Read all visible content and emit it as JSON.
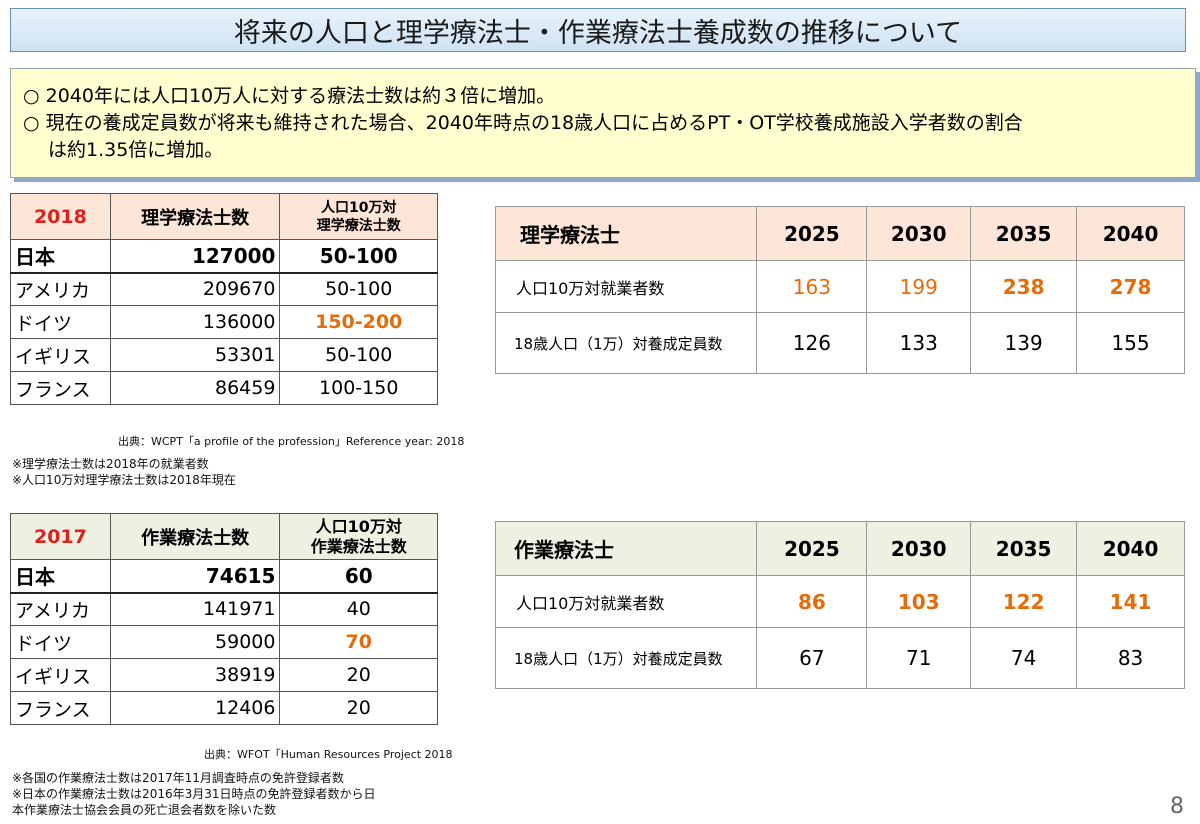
{
  "title": "将来の人口と理学療法士・作業療法士養成数の推移について",
  "summary": {
    "line1": "○ 2040年には人口10万人に対する療法士数は約３倍に増加。",
    "line2": "○ 現在の養成定員数が将来も維持された場合、2040年時点の18歳人口に占めるPT・OT学校養成施設入学者数の割合",
    "line3": "は約1.35倍に増加。"
  },
  "pt_country": {
    "year": "2018",
    "col_count": "理学療法士数",
    "col_ratio_1": "人口10万対",
    "col_ratio_2": "理学療法士数",
    "rows": [
      {
        "country": "日本",
        "count": "127000",
        "ratio": "50-100"
      },
      {
        "country": "アメリカ",
        "count": "209670",
        "ratio": "50-100"
      },
      {
        "country": "ドイツ",
        "count": "136000",
        "ratio": "150-200"
      },
      {
        "country": "イギリス",
        "count": "53301",
        "ratio": "50-100"
      },
      {
        "country": "フランス",
        "count": "86459",
        "ratio": "100-150"
      }
    ],
    "source": "出典：WCPT「a profile of the profession」Reference year: 2018",
    "notes": [
      "※理学療法士数は2018年の就業者数",
      "※人口10万対理学療法士数は2018年現在"
    ]
  },
  "ot_country": {
    "year": "2017",
    "col_count": "作業療法士数",
    "col_ratio_1": "人口10万対",
    "col_ratio_2": "作業療法士数",
    "rows": [
      {
        "country": "日本",
        "count": "74615",
        "ratio": "60"
      },
      {
        "country": "アメリカ",
        "count": "141971",
        "ratio": "40"
      },
      {
        "country": "ドイツ",
        "count": "59000",
        "ratio": "70"
      },
      {
        "country": "イギリス",
        "count": "38919",
        "ratio": "20"
      },
      {
        "country": "フランス",
        "count": "12406",
        "ratio": "20"
      }
    ],
    "source": "出典：WFOT「Human Resources Project 2018",
    "notes": [
      "※各国の作業療法士数は2017年11月調査時点の免許登録者数",
      "※日本の作業療法士数は2016年3月31日時点の免許登録者数から日",
      "本作業療法士協会会員の死亡退会者数を除いた数"
    ]
  },
  "pt_projection": {
    "label": "理学療法士",
    "years": [
      "2025",
      "2030",
      "2035",
      "2040"
    ],
    "row1_label": "人口10万対就業者数",
    "row1": [
      "163",
      "199",
      "238",
      "278"
    ],
    "row2_label": "18歳人口（1万）対養成定員数",
    "row2": [
      "126",
      "133",
      "139",
      "155"
    ]
  },
  "ot_projection": {
    "label": "作業療法士",
    "years": [
      "2025",
      "2030",
      "2035",
      "2040"
    ],
    "row1_label": "人口10万対就業者数",
    "row1": [
      "86",
      "103",
      "122",
      "141"
    ],
    "row2_label": "18歳人口（1万）対養成定員数",
    "row2": [
      "67",
      "71",
      "74",
      "83"
    ]
  },
  "page_number": "8",
  "colors": {
    "accent_orange": "#e46c0a",
    "year_red": "#e0201b",
    "summary_bg": "#ffffcf",
    "title_bg": "#cfe2f3"
  }
}
